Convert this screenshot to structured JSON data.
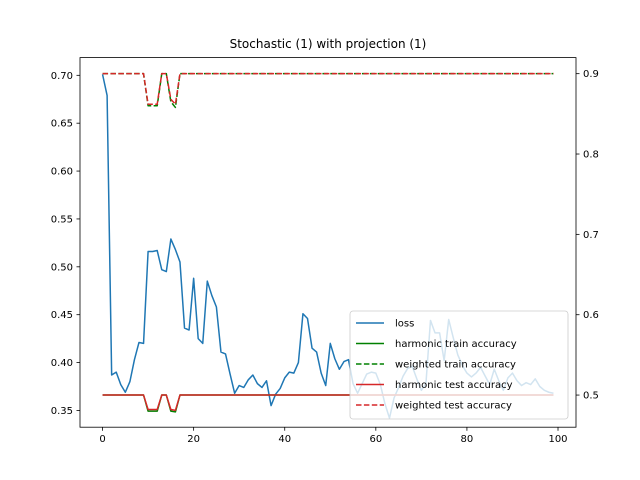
{
  "chart_data": {
    "type": "line",
    "title": "Stochastic (1) with projection (1)",
    "xlim": [
      -4.95,
      103.95
    ],
    "ylim_left": [
      0.3325,
      0.7185
    ],
    "ylim_right": [
      0.46,
      0.92
    ],
    "x_ticks": [
      0,
      20,
      40,
      60,
      80,
      100
    ],
    "y_ticks_left": [
      0.35,
      0.4,
      0.45,
      0.5,
      0.55,
      0.6,
      0.65,
      0.7
    ],
    "y_ticks_right": [
      0.5,
      0.6,
      0.7,
      0.8,
      0.9
    ],
    "y_tick_labels_left": [
      "0.35",
      "0.40",
      "0.45",
      "0.50",
      "0.55",
      "0.60",
      "0.65",
      "0.70"
    ],
    "y_tick_labels_right": [
      "0.5",
      "0.6",
      "0.7",
      "0.8",
      "0.9"
    ],
    "legend_position": "lower-right",
    "series": [
      {
        "name": "loss",
        "axis": "left",
        "color": "#1f77b4",
        "style": "solid",
        "values": [
          0.701,
          0.679,
          0.387,
          0.39,
          0.377,
          0.369,
          0.38,
          0.403,
          0.421,
          0.42,
          0.516,
          0.516,
          0.517,
          0.497,
          0.495,
          0.529,
          0.518,
          0.505,
          0.436,
          0.434,
          0.488,
          0.425,
          0.42,
          0.485,
          0.47,
          0.458,
          0.411,
          0.409,
          0.388,
          0.368,
          0.376,
          0.374,
          0.382,
          0.387,
          0.378,
          0.374,
          0.381,
          0.355,
          0.367,
          0.373,
          0.384,
          0.39,
          0.389,
          0.4,
          0.451,
          0.446,
          0.415,
          0.411,
          0.389,
          0.376,
          0.42,
          0.404,
          0.393,
          0.401,
          0.403,
          0.378,
          0.368,
          0.378,
          0.388,
          0.39,
          0.389,
          0.377,
          0.357,
          0.342,
          0.363,
          0.374,
          0.386,
          0.394,
          0.396,
          0.383,
          0.371,
          0.378,
          0.444,
          0.431,
          0.431,
          0.402,
          0.445,
          0.426,
          0.408,
          0.397,
          0.389,
          0.385,
          0.389,
          0.395,
          0.386,
          0.377,
          0.393,
          0.381,
          0.371,
          0.384,
          0.389,
          0.381,
          0.376,
          0.379,
          0.377,
          0.383,
          0.375,
          0.371,
          0.369,
          0.368
        ]
      },
      {
        "name": "harmonic train accuracy",
        "axis": "right",
        "color": "#008000",
        "style": "solid",
        "values": [
          0.5,
          0.5,
          0.5,
          0.5,
          0.5,
          0.5,
          0.5,
          0.5,
          0.5,
          0.5,
          0.48,
          0.48,
          0.48,
          0.5,
          0.5,
          0.48,
          0.479,
          0.5,
          0.5,
          0.5,
          0.5,
          0.5,
          0.5,
          0.5,
          0.5,
          0.5,
          0.5,
          0.5,
          0.5,
          0.5,
          0.5,
          0.5,
          0.5,
          0.5,
          0.5,
          0.5,
          0.5,
          0.5,
          0.5,
          0.5,
          0.5,
          0.5,
          0.5,
          0.5,
          0.5,
          0.5,
          0.5,
          0.5,
          0.5,
          0.5,
          0.5,
          0.5,
          0.5,
          0.5,
          0.5,
          0.5,
          0.5,
          0.5,
          0.5,
          0.5,
          0.5,
          0.5,
          0.5,
          0.5,
          0.5,
          0.5,
          0.5,
          0.5,
          0.5,
          0.5,
          0.5,
          0.5,
          0.5,
          0.5,
          0.5,
          0.5,
          0.5,
          0.5,
          0.5,
          0.5,
          0.5,
          0.5,
          0.5,
          0.5,
          0.5,
          0.5,
          0.5,
          0.5,
          0.5,
          0.5,
          0.5,
          0.5,
          0.5,
          0.5,
          0.5,
          0.5,
          0.5,
          0.5,
          0.5,
          0.5
        ]
      },
      {
        "name": "weighted train accuracy",
        "axis": "right",
        "color": "#008000",
        "style": "dashed",
        "values": [
          0.9,
          0.9,
          0.9,
          0.9,
          0.9,
          0.9,
          0.9,
          0.9,
          0.9,
          0.9,
          0.86,
          0.86,
          0.86,
          0.9,
          0.9,
          0.865,
          0.858,
          0.9,
          0.9,
          0.9,
          0.9,
          0.9,
          0.9,
          0.9,
          0.9,
          0.9,
          0.9,
          0.9,
          0.9,
          0.9,
          0.9,
          0.9,
          0.9,
          0.9,
          0.9,
          0.9,
          0.9,
          0.9,
          0.9,
          0.9,
          0.9,
          0.9,
          0.9,
          0.9,
          0.9,
          0.9,
          0.9,
          0.9,
          0.9,
          0.9,
          0.9,
          0.9,
          0.9,
          0.9,
          0.9,
          0.9,
          0.9,
          0.9,
          0.9,
          0.9,
          0.9,
          0.9,
          0.9,
          0.9,
          0.9,
          0.9,
          0.9,
          0.9,
          0.9,
          0.9,
          0.9,
          0.9,
          0.9,
          0.9,
          0.9,
          0.9,
          0.9,
          0.9,
          0.9,
          0.9,
          0.9,
          0.9,
          0.9,
          0.9,
          0.9,
          0.9,
          0.9,
          0.9,
          0.9,
          0.9,
          0.9,
          0.9,
          0.9,
          0.9,
          0.9,
          0.9,
          0.9,
          0.9,
          0.9,
          0.9
        ]
      },
      {
        "name": "harmonic test accuracy",
        "axis": "right",
        "color": "#d62728",
        "style": "solid",
        "values": [
          0.5,
          0.5,
          0.5,
          0.5,
          0.5,
          0.5,
          0.5,
          0.5,
          0.5,
          0.5,
          0.482,
          0.482,
          0.482,
          0.5,
          0.5,
          0.482,
          0.481,
          0.5,
          0.5,
          0.5,
          0.5,
          0.5,
          0.5,
          0.5,
          0.5,
          0.5,
          0.5,
          0.5,
          0.5,
          0.5,
          0.5,
          0.5,
          0.5,
          0.5,
          0.5,
          0.5,
          0.5,
          0.5,
          0.5,
          0.5,
          0.5,
          0.5,
          0.5,
          0.5,
          0.5,
          0.5,
          0.5,
          0.5,
          0.5,
          0.5,
          0.5,
          0.5,
          0.5,
          0.5,
          0.5,
          0.5,
          0.5,
          0.5,
          0.5,
          0.5,
          0.5,
          0.5,
          0.5,
          0.5,
          0.5,
          0.5,
          0.5,
          0.5,
          0.5,
          0.5,
          0.5,
          0.5,
          0.5,
          0.5,
          0.5,
          0.5,
          0.5,
          0.5,
          0.5,
          0.5,
          0.5,
          0.5,
          0.5,
          0.5,
          0.5,
          0.5,
          0.5,
          0.5,
          0.5,
          0.5,
          0.5,
          0.5,
          0.5,
          0.5,
          0.5,
          0.5,
          0.5,
          0.5,
          0.5,
          0.5
        ]
      },
      {
        "name": "weighted test accuracy",
        "axis": "right",
        "color": "#d62728",
        "style": "dashed",
        "values": [
          0.9,
          0.9,
          0.9,
          0.9,
          0.9,
          0.9,
          0.9,
          0.9,
          0.9,
          0.9,
          0.862,
          0.862,
          0.862,
          0.9,
          0.9,
          0.868,
          0.862,
          0.9,
          0.9,
          0.9,
          0.9,
          0.9,
          0.9,
          0.9,
          0.9,
          0.9,
          0.9,
          0.9,
          0.9,
          0.9,
          0.9,
          0.9,
          0.9,
          0.9,
          0.9,
          0.9,
          0.9,
          0.9,
          0.9,
          0.9,
          0.9,
          0.9,
          0.9,
          0.9,
          0.9,
          0.9,
          0.9,
          0.9,
          0.9,
          0.9,
          0.9,
          0.9,
          0.9,
          0.9,
          0.9,
          0.9,
          0.9,
          0.9,
          0.9,
          0.9,
          0.9,
          0.9,
          0.9,
          0.9,
          0.9,
          0.9,
          0.9,
          0.9,
          0.9,
          0.9,
          0.9,
          0.9,
          0.9,
          0.9,
          0.9,
          0.9,
          0.9,
          0.9,
          0.9,
          0.9,
          0.9,
          0.9,
          0.9,
          0.9,
          0.9,
          0.9,
          0.9,
          0.9,
          0.9,
          0.9,
          0.9,
          0.9,
          0.9,
          0.9,
          0.9,
          0.9,
          0.9,
          0.9,
          0.9,
          0.9
        ]
      }
    ]
  }
}
